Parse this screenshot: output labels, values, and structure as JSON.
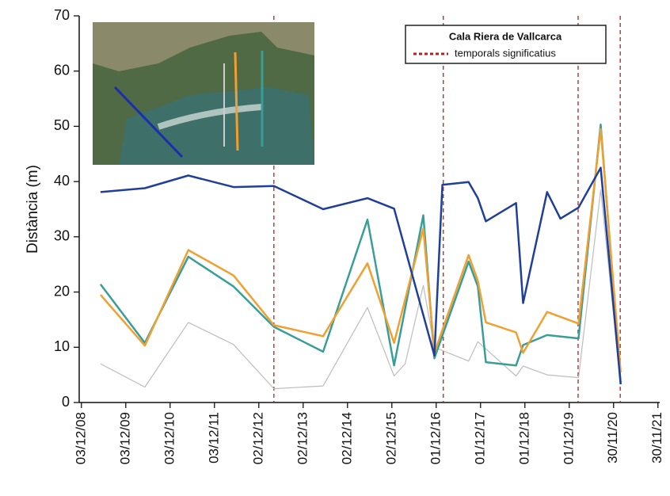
{
  "chart_data": {
    "type": "line",
    "ylabel": "Distància (m)",
    "legend_title": "Cala Riera de Vallcarca",
    "xlim": [
      2008.87,
      2021.96
    ],
    "ylim": [
      0,
      70
    ],
    "yticks": [
      0,
      10,
      20,
      30,
      40,
      50,
      60,
      70
    ],
    "xticks": [
      {
        "value": 2008.92,
        "label": "03/12/08"
      },
      {
        "value": 2009.92,
        "label": "03/12/09"
      },
      {
        "value": 2010.92,
        "label": "03/12/10"
      },
      {
        "value": 2011.92,
        "label": "03/12/11"
      },
      {
        "value": 2012.92,
        "label": "02/12/12"
      },
      {
        "value": 2013.92,
        "label": "02/12/13"
      },
      {
        "value": 2014.92,
        "label": "02/12/14"
      },
      {
        "value": 2015.92,
        "label": "02/12/15"
      },
      {
        "value": 2016.92,
        "label": "01/12/16"
      },
      {
        "value": 2017.92,
        "label": "01/12/17"
      },
      {
        "value": 2018.92,
        "label": "01/12/18"
      },
      {
        "value": 2019.92,
        "label": "01/12/19"
      },
      {
        "value": 2020.92,
        "label": "30/11/20"
      },
      {
        "value": 2021.92,
        "label": "30/11/21"
      }
    ],
    "events": {
      "name": "temporals significatius",
      "color": "#b22222",
      "x": [
        2013.26,
        2017.08,
        2020.12,
        2021.07
      ]
    },
    "series": [
      {
        "color": "#1f3f9a",
        "x": [
          2009.35,
          2010.35,
          2011.33,
          2012.35,
          2013.26,
          2014.37,
          2015.37,
          2015.97,
          2016.88,
          2017.06,
          2017.65,
          2017.86,
          2018.04,
          2018.72,
          2018.88,
          2019.42,
          2019.72,
          2020.13,
          2020.63,
          2021.08
        ],
        "values": [
          38.1,
          38.8,
          41.1,
          39.0,
          39.2,
          35.0,
          37.0,
          35.1,
          8.5,
          39.4,
          39.9,
          37.0,
          32.8,
          36.1,
          18.0,
          38.1,
          33.3,
          35.3,
          42.5,
          3.3
        ]
      },
      {
        "color": "#f0a030",
        "x": [
          2009.35,
          2010.35,
          2011.33,
          2012.35,
          2013.26,
          2014.37,
          2015.37,
          2015.97,
          2016.63,
          2016.88,
          2017.65,
          2017.86,
          2018.04,
          2018.72,
          2018.88,
          2019.42,
          2020.13,
          2020.63,
          2021.08
        ],
        "values": [
          19.5,
          10.3,
          27.6,
          23.0,
          14.0,
          12.0,
          25.2,
          10.8,
          31.5,
          9.0,
          26.7,
          22.0,
          14.5,
          12.7,
          9.0,
          16.4,
          14.3,
          49.5,
          5.5
        ]
      },
      {
        "color": "#3a9e98",
        "x": [
          2009.35,
          2010.35,
          2011.33,
          2012.35,
          2013.26,
          2014.37,
          2015.37,
          2015.97,
          2016.63,
          2016.88,
          2017.65,
          2017.86,
          2018.04,
          2018.72,
          2018.88,
          2019.42,
          2020.13,
          2020.63,
          2021.08
        ],
        "values": [
          21.4,
          10.8,
          26.4,
          21.0,
          13.7,
          9.2,
          33.1,
          6.7,
          33.9,
          8.0,
          25.5,
          21.0,
          7.3,
          6.7,
          10.4,
          12.2,
          11.6,
          50.3,
          3.5
        ]
      },
      {
        "color": "#bdbdbd",
        "x": [
          2009.35,
          2010.35,
          2011.33,
          2012.35,
          2013.26,
          2014.37,
          2015.37,
          2015.97,
          2016.22,
          2016.63,
          2016.88,
          2017.65,
          2017.86,
          2018.72,
          2018.88,
          2019.42,
          2020.13,
          2020.63,
          2021.08
        ],
        "values": [
          7.0,
          2.8,
          14.5,
          10.5,
          2.5,
          3.0,
          17.2,
          4.8,
          7.0,
          21.2,
          10.0,
          7.5,
          11.0,
          4.8,
          6.6,
          5.0,
          4.5,
          38.5,
          3.3
        ]
      }
    ]
  }
}
